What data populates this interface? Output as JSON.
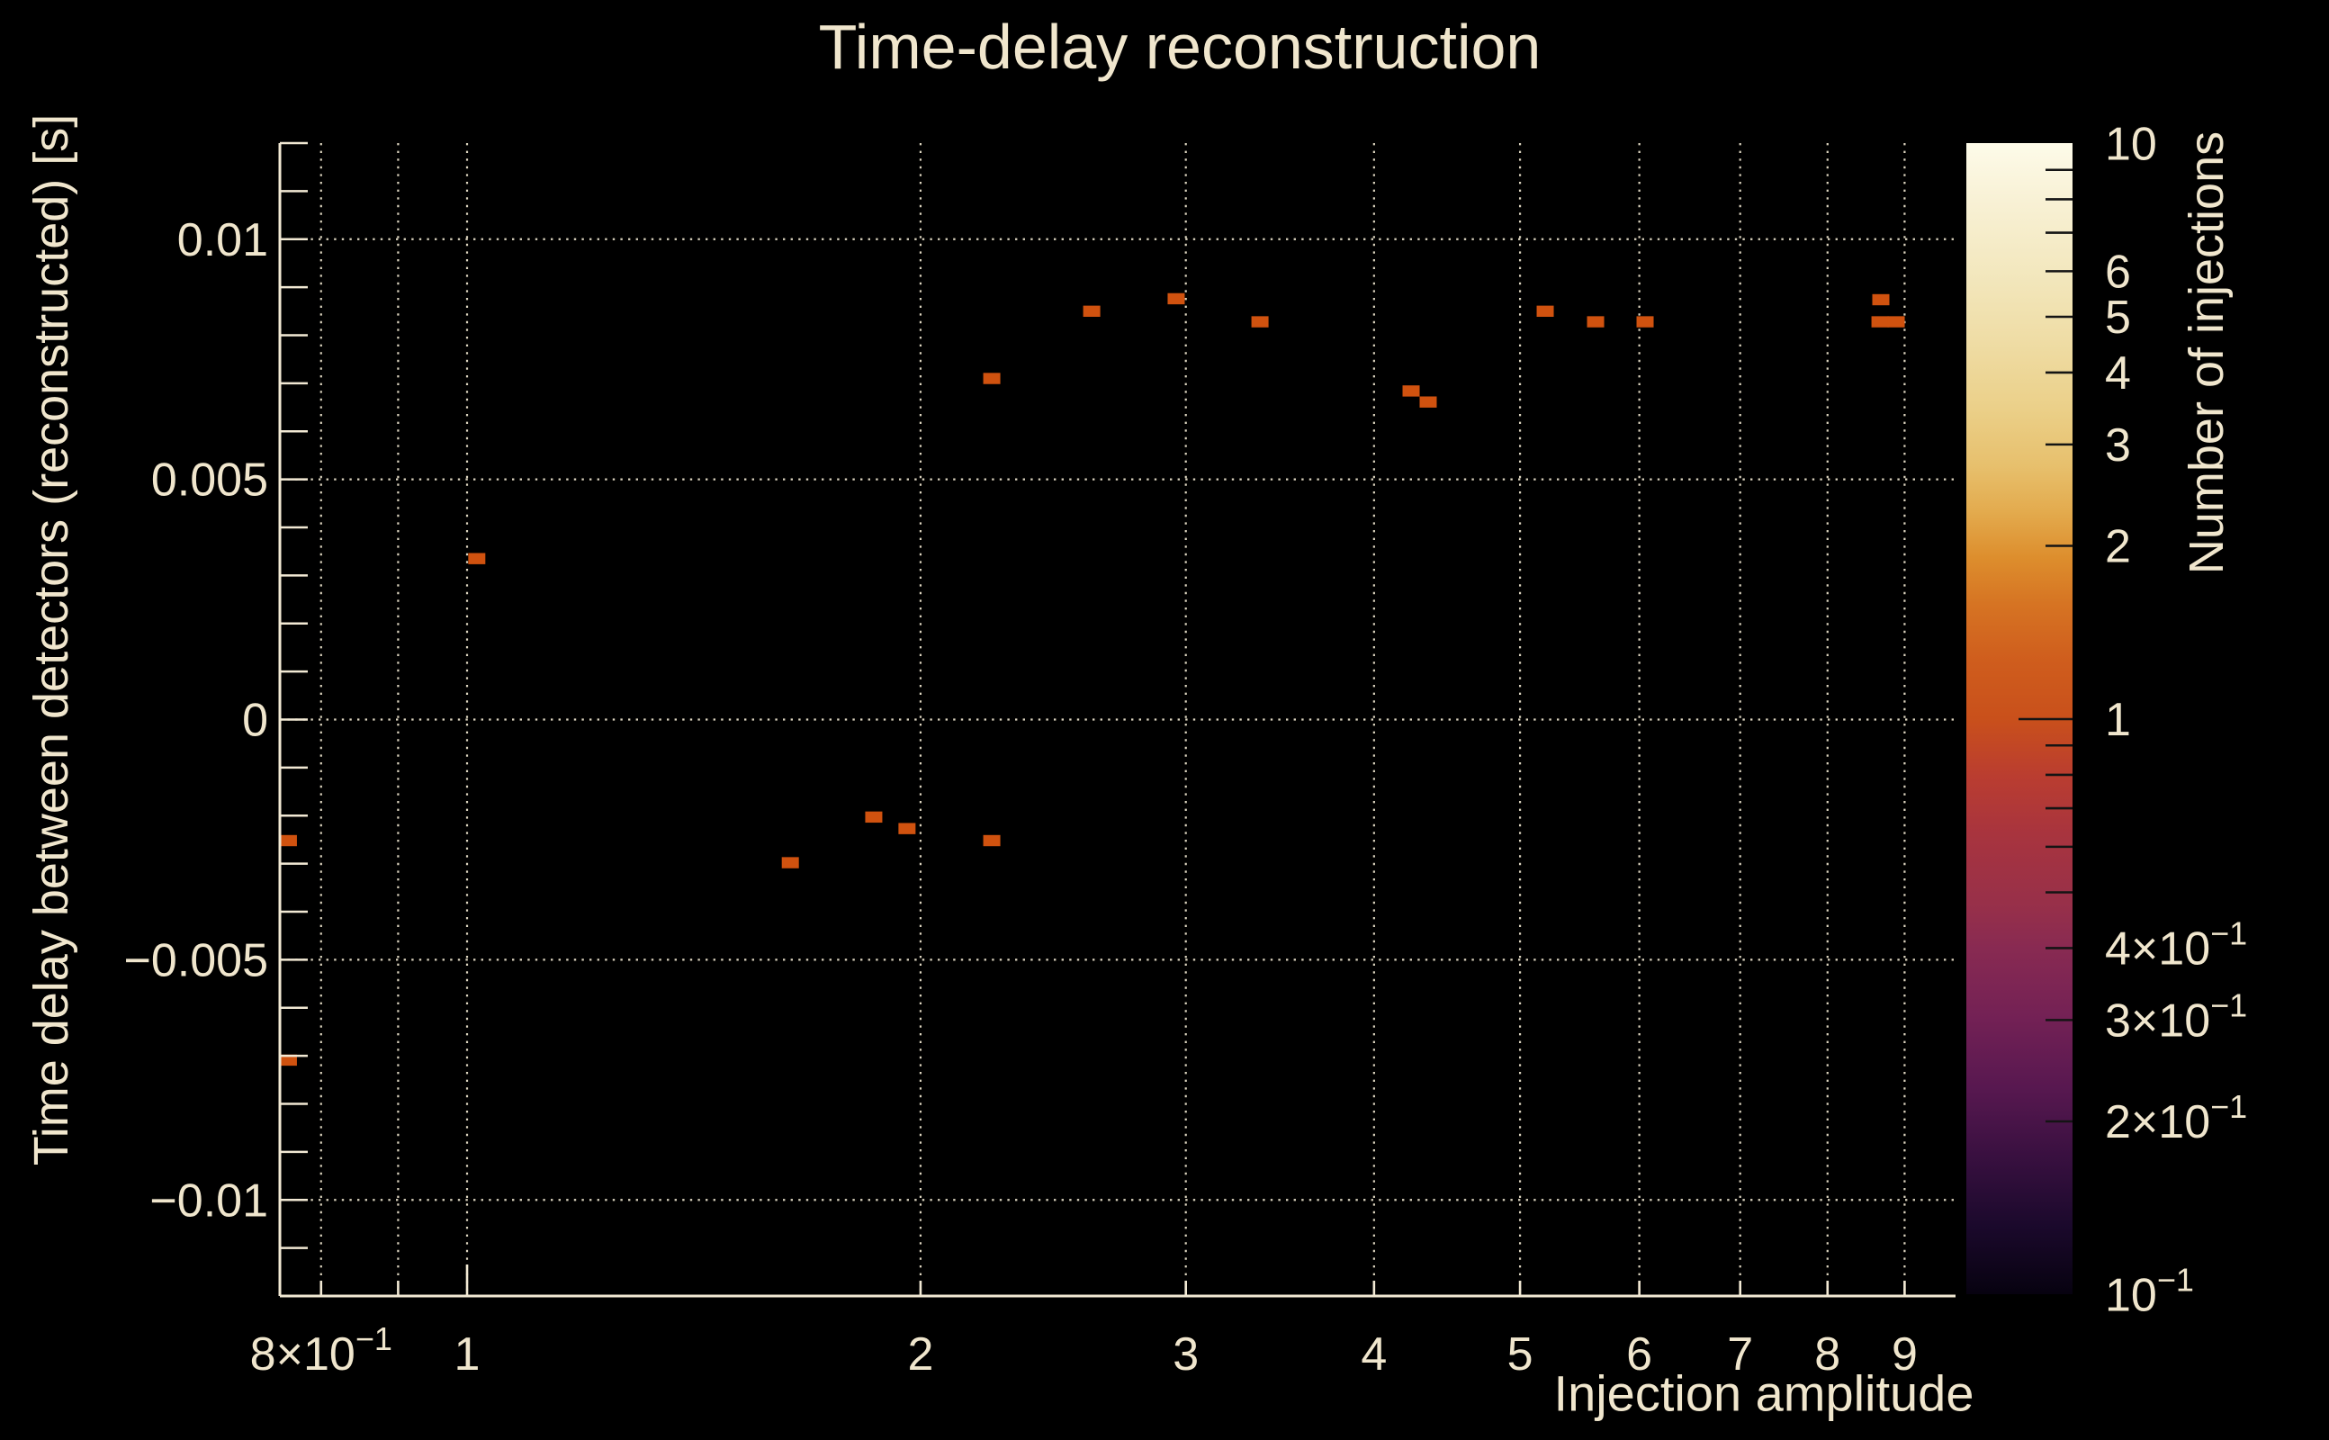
{
  "figure": {
    "background_color": "#000000",
    "text_color": "#f0e6cd",
    "spine_color": "#f2e9d4",
    "grid_color": "#efe7d0",
    "title": "Time-delay reconstruction"
  },
  "chart_data": {
    "type": "heatmap",
    "title": "Time-delay reconstruction",
    "xlabel": "Injection amplitude",
    "ylabel": "Time delay between detectors (reconstructed) [s]",
    "x_scale": "log",
    "y_scale": "linear",
    "xlim": [
      0.751,
      9.73
    ],
    "ylim": [
      -0.012,
      0.012
    ],
    "grid": "dotted",
    "x_ticks": [
      {
        "v": 0.8,
        "label": "8×10",
        "sup": "−1",
        "major": false
      },
      {
        "v": 0.9,
        "label": "",
        "sup": "",
        "major": false
      },
      {
        "v": 1,
        "label": "1",
        "sup": "",
        "major": true
      },
      {
        "v": 2,
        "label": "2",
        "sup": "",
        "major": false
      },
      {
        "v": 3,
        "label": "3",
        "sup": "",
        "major": false
      },
      {
        "v": 4,
        "label": "4",
        "sup": "",
        "major": false
      },
      {
        "v": 5,
        "label": "5",
        "sup": "",
        "major": false
      },
      {
        "v": 6,
        "label": "6",
        "sup": "",
        "major": false
      },
      {
        "v": 7,
        "label": "7",
        "sup": "",
        "major": false
      },
      {
        "v": 8,
        "label": "8",
        "sup": "",
        "major": false
      },
      {
        "v": 9,
        "label": "9",
        "sup": "",
        "major": false
      }
    ],
    "y_ticks": [
      {
        "v": 0.01,
        "label": "0.01"
      },
      {
        "v": 0.005,
        "label": "0.005"
      },
      {
        "v": 0,
        "label": "0"
      },
      {
        "v": -0.005,
        "label": "−0.005"
      },
      {
        "v": -0.01,
        "label": "−0.01"
      }
    ],
    "y_minor_step": 0.001,
    "marker_color": "#d0520f",
    "marker_bin_px": {
      "width": 19,
      "height": 12.4
    },
    "points": [
      {
        "x": 0.761,
        "y": -0.00252,
        "count": 1
      },
      {
        "x": 0.761,
        "y": -0.00709,
        "count": 1
      },
      {
        "x": 1.015,
        "y": 0.00335,
        "count": 1
      },
      {
        "x": 1.639,
        "y": -0.00298,
        "count": 1
      },
      {
        "x": 1.862,
        "y": -0.00203,
        "count": 1
      },
      {
        "x": 1.959,
        "y": -0.00227,
        "count": 1
      },
      {
        "x": 2.23,
        "y": -0.00252,
        "count": 1
      },
      {
        "x": 2.23,
        "y": 0.0071,
        "count": 1
      },
      {
        "x": 2.598,
        "y": 0.0085,
        "count": 1
      },
      {
        "x": 2.956,
        "y": 0.00876,
        "count": 1
      },
      {
        "x": 3.36,
        "y": 0.00828,
        "count": 1
      },
      {
        "x": 4.233,
        "y": 0.00684,
        "count": 1
      },
      {
        "x": 4.345,
        "y": 0.00661,
        "count": 1
      },
      {
        "x": 5.196,
        "y": 0.0085,
        "count": 1
      },
      {
        "x": 5.612,
        "y": 0.00828,
        "count": 1
      },
      {
        "x": 6.053,
        "y": 0.00828,
        "count": 1
      },
      {
        "x": 8.679,
        "y": 0.00874,
        "count": 1
      },
      {
        "x": 8.668,
        "y": 0.00828,
        "count": 1
      },
      {
        "x": 8.885,
        "y": 0.00828,
        "count": 1
      }
    ],
    "colorbar": {
      "label": "Number of injections",
      "scale": "log",
      "min": 0.1,
      "max": 10,
      "tick_color": "#141414",
      "ticks": [
        {
          "v": 10,
          "label": "10",
          "sup": "",
          "edge": true,
          "long": false
        },
        {
          "v": 9,
          "label": "",
          "sup": "",
          "edge": false,
          "long": false
        },
        {
          "v": 8,
          "label": "",
          "sup": "",
          "edge": false,
          "long": false
        },
        {
          "v": 7,
          "label": "",
          "sup": "",
          "edge": false,
          "long": false
        },
        {
          "v": 6,
          "label": "6",
          "sup": "",
          "edge": false,
          "long": false
        },
        {
          "v": 5,
          "label": "5",
          "sup": "",
          "edge": false,
          "long": false
        },
        {
          "v": 4,
          "label": "4",
          "sup": "",
          "edge": false,
          "long": false
        },
        {
          "v": 3,
          "label": "3",
          "sup": "",
          "edge": false,
          "long": false
        },
        {
          "v": 2,
          "label": "2",
          "sup": "",
          "edge": false,
          "long": false
        },
        {
          "v": 1,
          "label": "1",
          "sup": "",
          "edge": false,
          "long": true
        },
        {
          "v": 0.9,
          "label": "",
          "sup": "",
          "edge": false,
          "long": false
        },
        {
          "v": 0.8,
          "label": "",
          "sup": "",
          "edge": false,
          "long": false
        },
        {
          "v": 0.7,
          "label": "",
          "sup": "",
          "edge": false,
          "long": false
        },
        {
          "v": 0.6,
          "label": "",
          "sup": "",
          "edge": false,
          "long": false
        },
        {
          "v": 0.5,
          "label": "",
          "sup": "",
          "edge": false,
          "long": false
        },
        {
          "v": 0.4,
          "label": "4×10",
          "sup": "−1",
          "edge": false,
          "long": false
        },
        {
          "v": 0.3,
          "label": "3×10",
          "sup": "−1",
          "edge": false,
          "long": false
        },
        {
          "v": 0.2,
          "label": "2×10",
          "sup": "−1",
          "edge": false,
          "long": false
        },
        {
          "v": 0.1,
          "label": "10",
          "sup": "−1",
          "edge": true,
          "long": false
        }
      ],
      "gradient_stops": [
        {
          "offset": 0.0,
          "color": "#fdfbe9"
        },
        {
          "offset": 0.05,
          "color": "#f8f1d5"
        },
        {
          "offset": 0.11,
          "color": "#f3e8bf"
        },
        {
          "offset": 0.17,
          "color": "#efdda6"
        },
        {
          "offset": 0.23,
          "color": "#ebd089"
        },
        {
          "offset": 0.28,
          "color": "#e7c06d"
        },
        {
          "offset": 0.32,
          "color": "#e3ab4e"
        },
        {
          "offset": 0.36,
          "color": "#dd8e2d"
        },
        {
          "offset": 0.4,
          "color": "#d67423"
        },
        {
          "offset": 0.45,
          "color": "#cf5d1d"
        },
        {
          "offset": 0.5,
          "color": "#c9501b"
        },
        {
          "offset": 0.55,
          "color": "#ba3d30"
        },
        {
          "offset": 0.6,
          "color": "#a8343e"
        },
        {
          "offset": 0.66,
          "color": "#983049"
        },
        {
          "offset": 0.7,
          "color": "#882a52"
        },
        {
          "offset": 0.76,
          "color": "#732155"
        },
        {
          "offset": 0.82,
          "color": "#581850"
        },
        {
          "offset": 0.88,
          "color": "#391040"
        },
        {
          "offset": 0.94,
          "color": "#1b092c"
        },
        {
          "offset": 1.0,
          "color": "#070210"
        }
      ]
    }
  }
}
